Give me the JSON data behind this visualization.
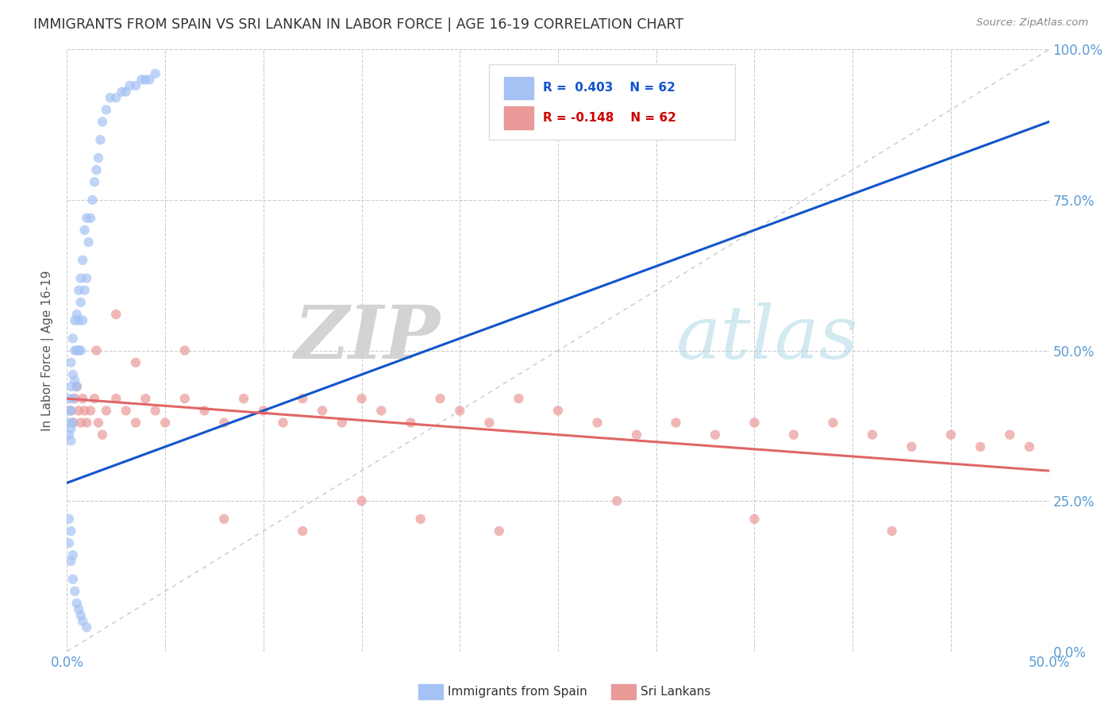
{
  "title": "IMMIGRANTS FROM SPAIN VS SRI LANKAN IN LABOR FORCE | AGE 16-19 CORRELATION CHART",
  "source": "Source: ZipAtlas.com",
  "ylabel": "In Labor Force | Age 16-19",
  "xlim": [
    0.0,
    0.5
  ],
  "ylim": [
    0.0,
    1.0
  ],
  "blue_color": "#a4c2f4",
  "pink_color": "#ea9999",
  "blue_line_color": "#1155cc",
  "pink_line_color": "#e06666",
  "legend_blue_text_color": "#1155cc",
  "legend_pink_text_color": "#cc0000",
  "watermark_zip": "ZIP",
  "watermark_atlas": "atlas",
  "spain_x": [
    0.001,
    0.001,
    0.001,
    0.001,
    0.002,
    0.002,
    0.002,
    0.002,
    0.002,
    0.003,
    0.003,
    0.003,
    0.003,
    0.004,
    0.004,
    0.004,
    0.005,
    0.005,
    0.005,
    0.006,
    0.006,
    0.006,
    0.007,
    0.007,
    0.007,
    0.008,
    0.008,
    0.009,
    0.009,
    0.01,
    0.01,
    0.011,
    0.012,
    0.013,
    0.014,
    0.015,
    0.016,
    0.017,
    0.018,
    0.02,
    0.022,
    0.025,
    0.028,
    0.03,
    0.032,
    0.035,
    0.038,
    0.04,
    0.042,
    0.045,
    0.001,
    0.001,
    0.002,
    0.002,
    0.003,
    0.003,
    0.004,
    0.005,
    0.006,
    0.007,
    0.008,
    0.01
  ],
  "spain_y": [
    0.36,
    0.38,
    0.4,
    0.42,
    0.35,
    0.37,
    0.4,
    0.44,
    0.48,
    0.38,
    0.42,
    0.46,
    0.52,
    0.45,
    0.5,
    0.55,
    0.44,
    0.5,
    0.56,
    0.5,
    0.55,
    0.6,
    0.5,
    0.58,
    0.62,
    0.55,
    0.65,
    0.6,
    0.7,
    0.62,
    0.72,
    0.68,
    0.72,
    0.75,
    0.78,
    0.8,
    0.82,
    0.85,
    0.88,
    0.9,
    0.92,
    0.92,
    0.93,
    0.93,
    0.94,
    0.94,
    0.95,
    0.95,
    0.95,
    0.96,
    0.18,
    0.22,
    0.15,
    0.2,
    0.12,
    0.16,
    0.1,
    0.08,
    0.07,
    0.06,
    0.05,
    0.04
  ],
  "sri_x": [
    0.002,
    0.003,
    0.004,
    0.005,
    0.006,
    0.007,
    0.008,
    0.009,
    0.01,
    0.012,
    0.014,
    0.016,
    0.018,
    0.02,
    0.025,
    0.03,
    0.035,
    0.04,
    0.045,
    0.05,
    0.06,
    0.07,
    0.08,
    0.09,
    0.1,
    0.11,
    0.12,
    0.13,
    0.14,
    0.15,
    0.16,
    0.175,
    0.19,
    0.2,
    0.215,
    0.23,
    0.25,
    0.27,
    0.29,
    0.31,
    0.33,
    0.35,
    0.37,
    0.39,
    0.41,
    0.43,
    0.45,
    0.465,
    0.48,
    0.49,
    0.015,
    0.025,
    0.035,
    0.06,
    0.08,
    0.12,
    0.15,
    0.18,
    0.22,
    0.28,
    0.35,
    0.42
  ],
  "sri_y": [
    0.4,
    0.38,
    0.42,
    0.44,
    0.4,
    0.38,
    0.42,
    0.4,
    0.38,
    0.4,
    0.42,
    0.38,
    0.36,
    0.4,
    0.42,
    0.4,
    0.38,
    0.42,
    0.4,
    0.38,
    0.42,
    0.4,
    0.38,
    0.42,
    0.4,
    0.38,
    0.42,
    0.4,
    0.38,
    0.42,
    0.4,
    0.38,
    0.42,
    0.4,
    0.38,
    0.42,
    0.4,
    0.38,
    0.36,
    0.38,
    0.36,
    0.38,
    0.36,
    0.38,
    0.36,
    0.34,
    0.36,
    0.34,
    0.36,
    0.34,
    0.5,
    0.56,
    0.48,
    0.5,
    0.22,
    0.2,
    0.25,
    0.22,
    0.2,
    0.25,
    0.22,
    0.2
  ],
  "blue_trend_x": [
    0.0,
    0.5
  ],
  "blue_trend_y": [
    0.28,
    0.88
  ],
  "pink_trend_x": [
    0.0,
    0.5
  ],
  "pink_trend_y": [
    0.42,
    0.3
  ]
}
